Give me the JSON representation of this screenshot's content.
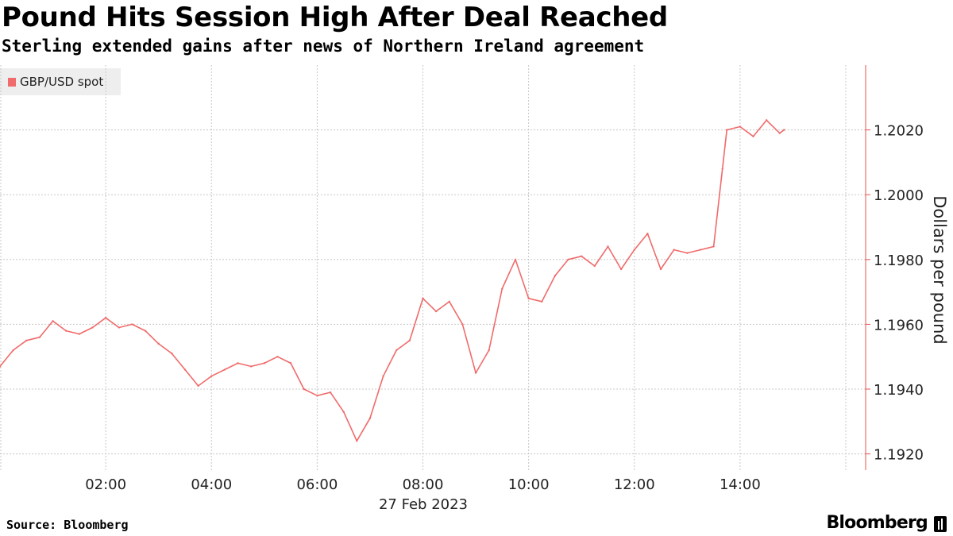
{
  "header": {
    "title": "Pound Hits Session High After Deal Reached",
    "subtitle": "Sterling extended gains after news of Northern Ireland agreement"
  },
  "footer": {
    "source": "Source: Bloomberg",
    "brand": "Bloomberg"
  },
  "colors": {
    "series": "#f06b6b",
    "grid": "#c8c8c8",
    "axis": "#e5544f"
  },
  "chart_data": {
    "type": "line",
    "title": "Pound Hits Session High After Deal Reached",
    "subtitle": "Sterling extended gains after news of Northern Ireland agreement",
    "xlabel": "27 Feb 2023",
    "ylabel": "Dollars per pound",
    "x_tick_labels": [
      "02:00",
      "04:00",
      "06:00",
      "08:00",
      "10:00",
      "12:00",
      "14:00"
    ],
    "y_tick_labels": [
      "1.2020",
      "1.2000",
      "1.1980",
      "1.1960",
      "1.1940",
      "1.1920"
    ],
    "ylim": [
      1.1915,
      1.204
    ],
    "xlim": [
      "00:00",
      "16:00"
    ],
    "y_axis_side": "right",
    "grid": true,
    "legend": "top-left",
    "series": [
      {
        "name": "GBP/USD spot",
        "x": [
          "00:00",
          "00:15",
          "00:30",
          "00:45",
          "01:00",
          "01:15",
          "01:30",
          "01:45",
          "02:00",
          "02:15",
          "02:30",
          "02:45",
          "03:00",
          "03:15",
          "03:30",
          "03:45",
          "04:00",
          "04:15",
          "04:30",
          "04:45",
          "05:00",
          "05:15",
          "05:30",
          "05:45",
          "06:00",
          "06:15",
          "06:30",
          "06:45",
          "07:00",
          "07:15",
          "07:30",
          "07:45",
          "08:00",
          "08:15",
          "08:30",
          "08:45",
          "09:00",
          "09:15",
          "09:30",
          "09:45",
          "10:00",
          "10:15",
          "10:30",
          "10:45",
          "11:00",
          "11:15",
          "11:30",
          "11:45",
          "12:00",
          "12:15",
          "12:30",
          "12:45",
          "13:00",
          "13:15",
          "13:30",
          "13:40",
          "13:45",
          "14:00",
          "14:15",
          "14:30",
          "14:45",
          "14:50"
        ],
        "values": [
          1.1947,
          1.1952,
          1.1955,
          1.1956,
          1.1961,
          1.1958,
          1.1957,
          1.1959,
          1.1962,
          1.1959,
          1.196,
          1.1958,
          1.1954,
          1.1951,
          1.1946,
          1.1941,
          1.1944,
          1.1946,
          1.1948,
          1.1947,
          1.1948,
          1.195,
          1.1948,
          1.194,
          1.1938,
          1.1939,
          1.1933,
          1.1924,
          1.1931,
          1.1944,
          1.1952,
          1.1955,
          1.1968,
          1.1964,
          1.1967,
          1.196,
          1.1945,
          1.1952,
          1.1971,
          1.198,
          1.1968,
          1.1967,
          1.1975,
          1.198,
          1.1981,
          1.1978,
          1.1984,
          1.1977,
          1.1983,
          1.1988,
          1.1977,
          1.1983,
          1.1982,
          1.1983,
          1.1984,
          1.2008,
          1.202,
          1.2021,
          1.2018,
          1.2023,
          1.2019,
          1.202
        ]
      }
    ]
  }
}
